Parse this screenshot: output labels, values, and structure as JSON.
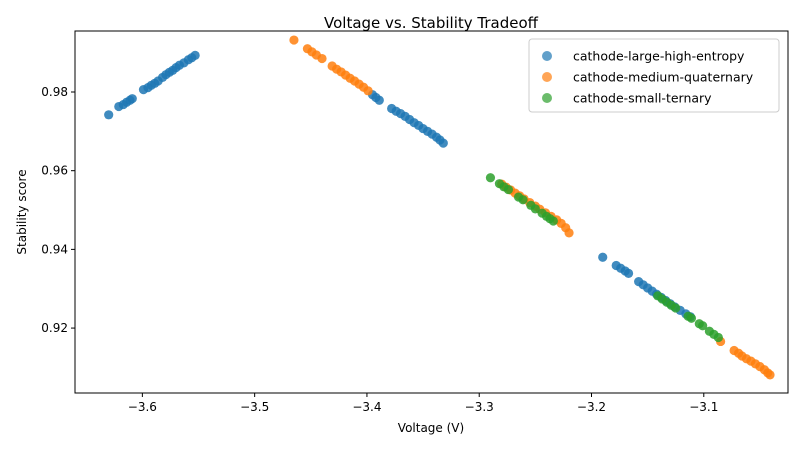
{
  "chart_data": {
    "type": "scatter",
    "title": "Voltage vs. Stability Tradeoff",
    "xlabel": "Voltage (V)",
    "ylabel": "Stability score",
    "xlim": [
      -3.66,
      -3.025
    ],
    "ylim": [
      0.9035,
      0.9955
    ],
    "xticks": [
      -3.6,
      -3.5,
      -3.4,
      -3.3,
      -3.2,
      -3.1
    ],
    "xtick_labels": [
      "−3.6",
      "−3.5",
      "−3.4",
      "−3.3",
      "−3.2",
      "−3.1"
    ],
    "yticks": [
      0.92,
      0.94,
      0.96,
      0.98
    ],
    "ytick_labels": [
      "0.92",
      "0.94",
      "0.96",
      "0.98"
    ],
    "grid": false,
    "legend_position": "top-right",
    "series": [
      {
        "name": "cathode-large-high-entropy",
        "color": "#1f77b4",
        "points": [
          [
            -3.63,
            0.9742
          ],
          [
            -3.621,
            0.9763
          ],
          [
            -3.617,
            0.9768
          ],
          [
            -3.614,
            0.9774
          ],
          [
            -3.611,
            0.9779
          ],
          [
            -3.609,
            0.9783
          ],
          [
            -3.599,
            0.9806
          ],
          [
            -3.595,
            0.9811
          ],
          [
            -3.592,
            0.9817
          ],
          [
            -3.589,
            0.9822
          ],
          [
            -3.586,
            0.9828
          ],
          [
            -3.582,
            0.9837
          ],
          [
            -3.579,
            0.9844
          ],
          [
            -3.576,
            0.985
          ],
          [
            -3.573,
            0.9855
          ],
          [
            -3.57,
            0.9862
          ],
          [
            -3.567,
            0.9868
          ],
          [
            -3.563,
            0.9874
          ],
          [
            -3.559,
            0.9882
          ],
          [
            -3.556,
            0.9887
          ],
          [
            -3.553,
            0.9893
          ],
          [
            -3.395,
            0.9793
          ],
          [
            -3.392,
            0.9786
          ],
          [
            -3.389,
            0.9779
          ],
          [
            -3.378,
            0.9758
          ],
          [
            -3.374,
            0.9751
          ],
          [
            -3.37,
            0.9745
          ],
          [
            -3.366,
            0.9738
          ],
          [
            -3.362,
            0.973
          ],
          [
            -3.358,
            0.9722
          ],
          [
            -3.354,
            0.9715
          ],
          [
            -3.35,
            0.9707
          ],
          [
            -3.346,
            0.97
          ],
          [
            -3.342,
            0.9693
          ],
          [
            -3.338,
            0.9685
          ],
          [
            -3.335,
            0.9678
          ],
          [
            -3.332,
            0.967
          ],
          [
            -3.19,
            0.938
          ],
          [
            -3.178,
            0.9359
          ],
          [
            -3.174,
            0.9352
          ],
          [
            -3.17,
            0.9345
          ],
          [
            -3.167,
            0.9339
          ],
          [
            -3.158,
            0.9318
          ],
          [
            -3.154,
            0.931
          ],
          [
            -3.15,
            0.9302
          ],
          [
            -3.146,
            0.9294
          ],
          [
            -3.142,
            0.9286
          ],
          [
            -3.138,
            0.9278
          ],
          [
            -3.134,
            0.927
          ],
          [
            -3.13,
            0.9262
          ],
          [
            -3.126,
            0.9254
          ],
          [
            -3.121,
            0.9245
          ],
          [
            -3.116,
            0.9236
          ],
          [
            -3.112,
            0.9229
          ]
        ]
      },
      {
        "name": "cathode-medium-quaternary",
        "color": "#ff7f0e",
        "points": [
          [
            -3.465,
            0.9932
          ],
          [
            -3.453,
            0.991
          ],
          [
            -3.449,
            0.9902
          ],
          [
            -3.445,
            0.9894
          ],
          [
            -3.44,
            0.9885
          ],
          [
            -3.431,
            0.9866
          ],
          [
            -3.427,
            0.9858
          ],
          [
            -3.423,
            0.9851
          ],
          [
            -3.419,
            0.9843
          ],
          [
            -3.415,
            0.9835
          ],
          [
            -3.411,
            0.9828
          ],
          [
            -3.407,
            0.982
          ],
          [
            -3.403,
            0.9812
          ],
          [
            -3.399,
            0.9803
          ],
          [
            -3.28,
            0.9566
          ],
          [
            -3.276,
            0.9558
          ],
          [
            -3.272,
            0.9551
          ],
          [
            -3.268,
            0.9543
          ],
          [
            -3.264,
            0.9536
          ],
          [
            -3.26,
            0.9528
          ],
          [
            -3.255,
            0.9519
          ],
          [
            -3.25,
            0.951
          ],
          [
            -3.246,
            0.9502
          ],
          [
            -3.241,
            0.9493
          ],
          [
            -3.236,
            0.9484
          ],
          [
            -3.231,
            0.9475
          ],
          [
            -3.227,
            0.9466
          ],
          [
            -3.223,
            0.9455
          ],
          [
            -3.22,
            0.9442
          ],
          [
            -3.085,
            0.9166
          ],
          [
            -3.073,
            0.9143
          ],
          [
            -3.069,
            0.9136
          ],
          [
            -3.066,
            0.9129
          ],
          [
            -3.062,
            0.9122
          ],
          [
            -3.058,
            0.9116
          ],
          [
            -3.054,
            0.9109
          ],
          [
            -3.05,
            0.9102
          ],
          [
            -3.046,
            0.9094
          ],
          [
            -3.043,
            0.9086
          ],
          [
            -3.041,
            0.9081
          ]
        ]
      },
      {
        "name": "cathode-small-ternary",
        "color": "#2ca02c",
        "points": [
          [
            -3.29,
            0.9582
          ],
          [
            -3.282,
            0.9567
          ],
          [
            -3.278,
            0.9559
          ],
          [
            -3.274,
            0.9552
          ],
          [
            -3.265,
            0.9533
          ],
          [
            -3.261,
            0.9526
          ],
          [
            -3.254,
            0.9512
          ],
          [
            -3.25,
            0.9503
          ],
          [
            -3.244,
            0.9492
          ],
          [
            -3.24,
            0.9484
          ],
          [
            -3.237,
            0.9478
          ],
          [
            -3.234,
            0.9472
          ],
          [
            -3.141,
            0.9282
          ],
          [
            -3.137,
            0.9274
          ],
          [
            -3.133,
            0.9266
          ],
          [
            -3.129,
            0.9258
          ],
          [
            -3.125,
            0.9251
          ],
          [
            -3.114,
            0.923
          ],
          [
            -3.111,
            0.9225
          ],
          [
            -3.104,
            0.9211
          ],
          [
            -3.101,
            0.9206
          ],
          [
            -3.095,
            0.9192
          ],
          [
            -3.091,
            0.9184
          ],
          [
            -3.087,
            0.9176
          ]
        ]
      }
    ]
  }
}
